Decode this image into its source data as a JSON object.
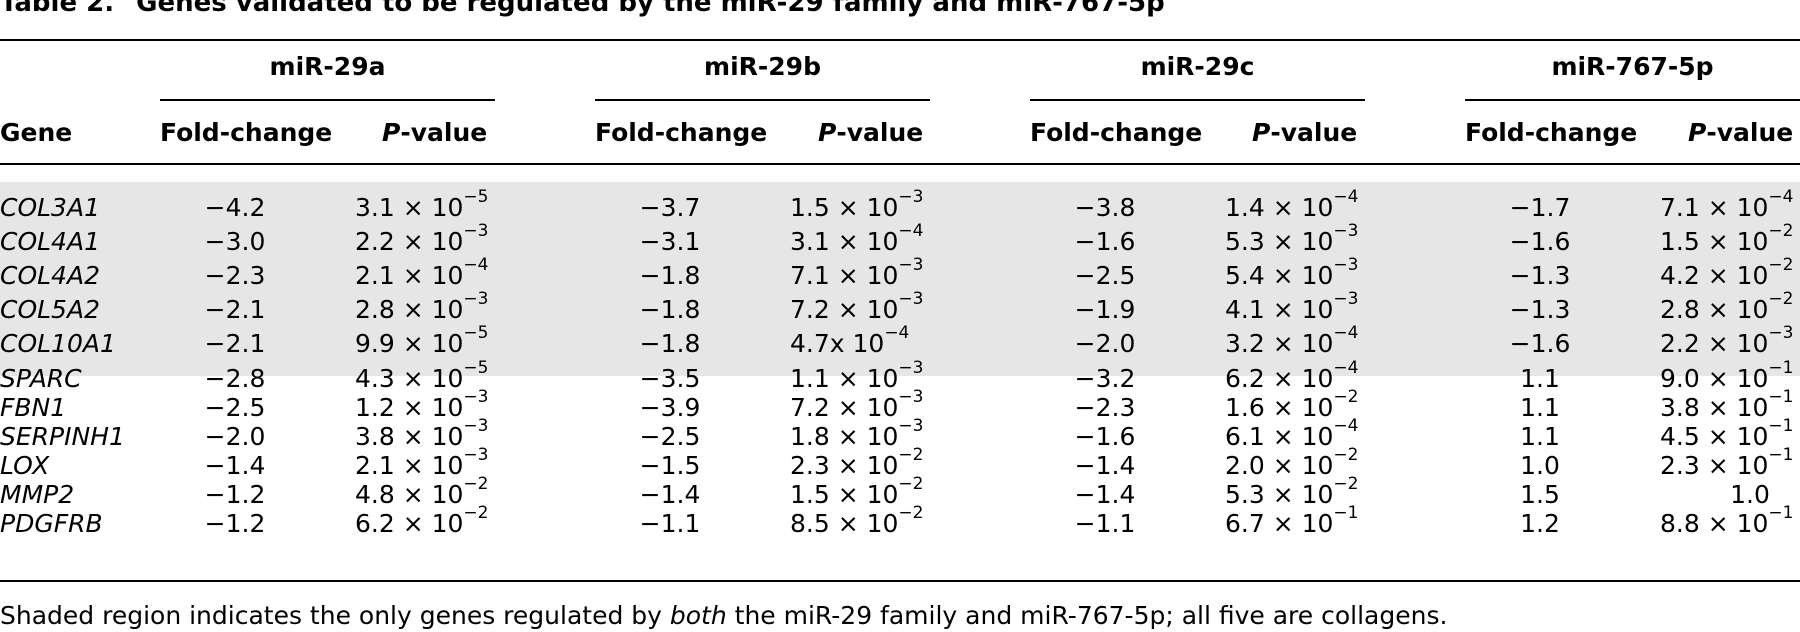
{
  "table": {
    "label": "Table 2.",
    "title": "Genes validated to be regulated by the miR-29 family and miR-767-5p",
    "gene_header": "Gene",
    "groups": [
      "miR-29a",
      "miR-29b",
      "miR-29c",
      "miR-767-5p"
    ],
    "col_fold": "Fold-change",
    "col_p_italic": "P",
    "col_p_rest": "-value",
    "shaded_rows": [
      0,
      1,
      2,
      3,
      4
    ],
    "rows": [
      {
        "gene": "COL3A1",
        "cells": [
          {
            "fc": "−4.2",
            "p": "3.1 × 10",
            "e": "−5"
          },
          {
            "fc": "−3.7",
            "p": "1.5 × 10",
            "e": "−3"
          },
          {
            "fc": "−3.8",
            "p": "1.4 × 10",
            "e": "−4"
          },
          {
            "fc": "−1.7",
            "p": "7.1 × 10",
            "e": "−4"
          }
        ]
      },
      {
        "gene": "COL4A1",
        "cells": [
          {
            "fc": "−3.0",
            "p": "2.2 × 10",
            "e": "−3"
          },
          {
            "fc": "−3.1",
            "p": "3.1 × 10",
            "e": "−4"
          },
          {
            "fc": "−1.6",
            "p": "5.3 × 10",
            "e": "−3"
          },
          {
            "fc": "−1.6",
            "p": "1.5 × 10",
            "e": "−2"
          }
        ]
      },
      {
        "gene": "COL4A2",
        "cells": [
          {
            "fc": "−2.3",
            "p": "2.1 × 10",
            "e": "−4"
          },
          {
            "fc": "−1.8",
            "p": "7.1 × 10",
            "e": "−3"
          },
          {
            "fc": "−2.5",
            "p": "5.4 × 10",
            "e": "−3"
          },
          {
            "fc": "−1.3",
            "p": "4.2 × 10",
            "e": "−2"
          }
        ]
      },
      {
        "gene": "COL5A2",
        "cells": [
          {
            "fc": "−2.1",
            "p": "2.8 × 10",
            "e": "−3"
          },
          {
            "fc": "−1.8",
            "p": "7.2 × 10",
            "e": "−3"
          },
          {
            "fc": "−1.9",
            "p": "4.1 × 10",
            "e": "−3"
          },
          {
            "fc": "−1.3",
            "p": "2.8 × 10",
            "e": "−2"
          }
        ]
      },
      {
        "gene": "COL10A1",
        "cells": [
          {
            "fc": "−2.1",
            "p": "9.9 × 10",
            "e": "−5"
          },
          {
            "fc": "−1.8",
            "p": "4.7x 10",
            "e": "−4"
          },
          {
            "fc": "−2.0",
            "p": "3.2 × 10",
            "e": "−4"
          },
          {
            "fc": "−1.6",
            "p": "2.2 × 10",
            "e": "−3"
          }
        ]
      },
      {
        "gene": "SPARC",
        "cells": [
          {
            "fc": "−2.8",
            "p": "4.3 × 10",
            "e": "−5"
          },
          {
            "fc": "−3.5",
            "p": "1.1 × 10",
            "e": "−3"
          },
          {
            "fc": "−3.2",
            "p": "6.2 × 10",
            "e": "−4"
          },
          {
            "fc": "1.1",
            "p": "9.0 × 10",
            "e": "−1"
          }
        ]
      },
      {
        "gene": "FBN1",
        "cells": [
          {
            "fc": "−2.5",
            "p": "1.2 × 10",
            "e": "−3"
          },
          {
            "fc": "−3.9",
            "p": "7.2 × 10",
            "e": "−3"
          },
          {
            "fc": "−2.3",
            "p": "1.6 × 10",
            "e": "−2"
          },
          {
            "fc": "1.1",
            "p": "3.8 × 10",
            "e": "−1"
          }
        ]
      },
      {
        "gene": "SERPINH1",
        "cells": [
          {
            "fc": "−2.0",
            "p": "3.8 × 10",
            "e": "−3"
          },
          {
            "fc": "−2.5",
            "p": "1.8 × 10",
            "e": "−3"
          },
          {
            "fc": "−1.6",
            "p": "6.1 × 10",
            "e": "−4"
          },
          {
            "fc": "1.1",
            "p": "4.5 × 10",
            "e": "−1"
          }
        ]
      },
      {
        "gene": "LOX",
        "cells": [
          {
            "fc": "−1.4",
            "p": "2.1 × 10",
            "e": "−3"
          },
          {
            "fc": "−1.5",
            "p": "2.3 × 10",
            "e": "−2"
          },
          {
            "fc": "−1.4",
            "p": "2.0 × 10",
            "e": "−2"
          },
          {
            "fc": "1.0",
            "p": "2.3 × 10",
            "e": "−1"
          }
        ]
      },
      {
        "gene": "MMP2",
        "cells": [
          {
            "fc": "−1.2",
            "p": "4.8 × 10",
            "e": "−2"
          },
          {
            "fc": "−1.4",
            "p": "1.5 × 10",
            "e": "−2"
          },
          {
            "fc": "−1.4",
            "p": "5.3 × 10",
            "e": "−2"
          },
          {
            "fc": "1.5",
            "p": "1.0",
            "e": ""
          }
        ]
      },
      {
        "gene": "PDGFRB",
        "cells": [
          {
            "fc": "−1.2",
            "p": "6.2 × 10",
            "e": "−2"
          },
          {
            "fc": "−1.1",
            "p": "8.5 × 10",
            "e": "−2"
          },
          {
            "fc": "−1.1",
            "p": "6.7 × 10",
            "e": "−1"
          },
          {
            "fc": "1.2",
            "p": "8.8 × 10",
            "e": "−1"
          }
        ]
      }
    ],
    "footnote_before": "Shaded region indicates the only genes regulated by ",
    "footnote_emph": "both",
    "footnote_after": " the miR-29 family and miR-767-5p; all five are collagens."
  }
}
